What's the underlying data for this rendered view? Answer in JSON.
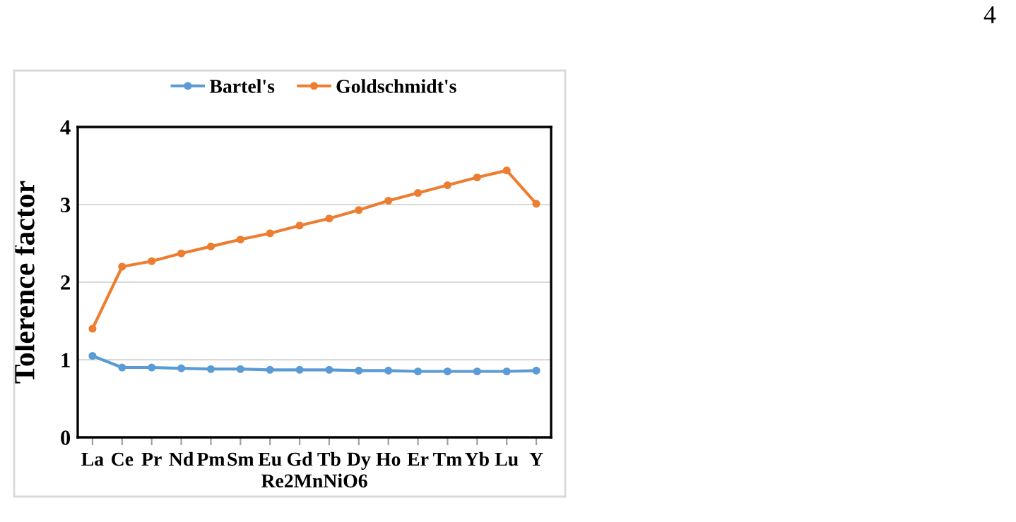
{
  "chart_data": {
    "type": "line",
    "xlabel": "Re2MnNiO6",
    "ylabel": "Tolerence factor",
    "categories": [
      "La",
      "Ce",
      "Pr",
      "Nd",
      "Pm",
      "Sm",
      "Eu",
      "Gd",
      "Tb",
      "Dy",
      "Ho",
      "Er",
      "Tm",
      "Yb",
      "Lu",
      "Y"
    ],
    "series": [
      {
        "name": "Bartel's",
        "color": "#5b9bd5",
        "values": [
          1.05,
          0.9,
          0.9,
          0.89,
          0.88,
          0.88,
          0.87,
          0.87,
          0.87,
          0.86,
          0.86,
          0.85,
          0.85,
          0.85,
          0.85,
          0.86
        ]
      },
      {
        "name": "Goldschmidt's",
        "color": "#ed7d31",
        "values": [
          1.4,
          2.2,
          2.27,
          2.37,
          2.46,
          2.55,
          2.63,
          2.73,
          2.82,
          2.93,
          3.05,
          3.15,
          3.25,
          3.35,
          3.44,
          3.01
        ]
      }
    ],
    "ylim": [
      0,
      4
    ],
    "yticks": [
      0,
      1,
      2,
      3,
      4
    ],
    "grid": "y",
    "legend": "top",
    "marker": "circle",
    "line_style": "solid",
    "annotations": [
      "4"
    ]
  }
}
